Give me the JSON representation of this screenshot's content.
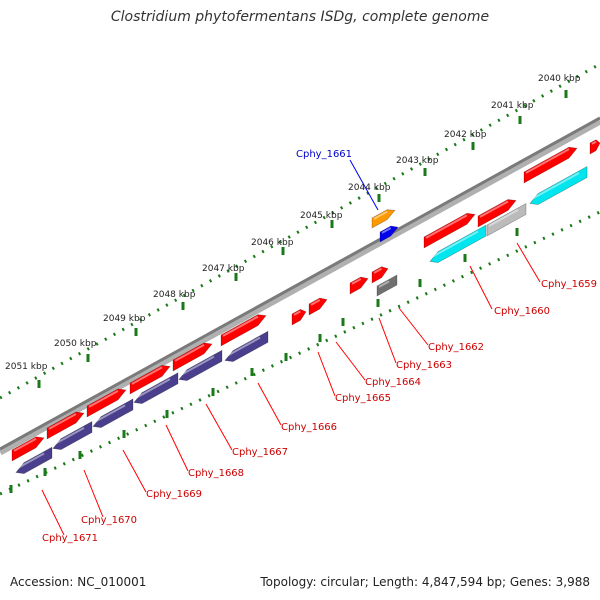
{
  "title": "Clostridium phytofermentans ISDg, complete genome",
  "footer": {
    "accession": "Accession: NC_010001",
    "summary": "Topology: circular; Length: 4,847,594 bp; Genes: 3,988"
  },
  "colors": {
    "forward": "#ff0000",
    "reverse": "#4a3f8c",
    "cyan": "#00e5ee",
    "grey": "#bbbbbb",
    "dark_grey": "#707070",
    "orange": "#ff9900",
    "blue": "#0000ee",
    "tick": "#1a7a1a",
    "backbone": "#888888"
  },
  "scale_labels": [
    "2040 kbp",
    "2041 kbp",
    "2042 kbp",
    "2043 kbp",
    "2044 kbp",
    "2045 kbp",
    "2046 kbp",
    "2047 kbp",
    "2048 kbp",
    "2049 kbp",
    "2050 kbp",
    "2051 kbp"
  ],
  "gene_labels": [
    "Cphy_1661",
    "Cphy_1659",
    "Cphy_1660",
    "Cphy_1662",
    "Cphy_1663",
    "Cphy_1664",
    "Cphy_1665",
    "Cphy_1666",
    "Cphy_1667",
    "Cphy_1668",
    "Cphy_1669",
    "Cphy_1670",
    "Cphy_1671"
  ]
}
